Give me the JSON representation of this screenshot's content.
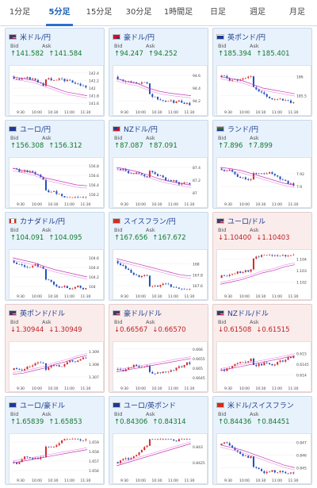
{
  "tabs": [
    {
      "label": "1分足",
      "active": false
    },
    {
      "label": "5分足",
      "active": true
    },
    {
      "label": "15分足",
      "active": false
    },
    {
      "label": "30分足",
      "active": false
    },
    {
      "label": "1時間足",
      "active": false
    },
    {
      "label": "日足",
      "active": false
    },
    {
      "label": "週足",
      "active": false
    },
    {
      "label": "月足",
      "active": false
    }
  ],
  "labels": {
    "bid": "Bid",
    "ask": "Ask"
  },
  "cards": [
    {
      "pair": "米ドル/円",
      "direction": "up",
      "bid": "↑141.582",
      "ask": "↑141.584",
      "flag": "us",
      "chart_data": {
        "type": "candlestick",
        "x_ticks": [
          "9:30",
          "10:00",
          "10:30",
          "11:00",
          "11:30"
        ],
        "y_ticks": [
          "142.4",
          "142.2",
          "142",
          "141.8",
          "141.6"
        ],
        "ylim": [
          141.5,
          142.5
        ],
        "trend": "down",
        "ma": [
          142.3,
          142.25,
          142.2,
          142.1,
          142.0,
          141.9,
          141.85,
          141.8
        ]
      }
    },
    {
      "pair": "豪ドル/円",
      "direction": "up",
      "bid": "↑94.247",
      "ask": "↑94.252",
      "flag": "au",
      "chart_data": {
        "type": "candlestick",
        "x_ticks": [
          "9:30",
          "10:00",
          "10:30",
          "11:00",
          "11:30"
        ],
        "y_ticks": [
          "94.6",
          "94.4",
          "94.2"
        ],
        "ylim": [
          94.1,
          94.7
        ],
        "trend": "down",
        "ma": [
          94.55,
          94.5,
          94.47,
          94.4,
          94.35,
          94.32,
          94.3,
          94.28
        ]
      }
    },
    {
      "pair": "英ポンド/円",
      "direction": "up",
      "bid": "↑185.394",
      "ask": "↑185.401",
      "flag": "uk",
      "chart_data": {
        "type": "candlestick",
        "x_ticks": [
          "9:30",
          "10:00",
          "10:30",
          "11:00",
          "11:30"
        ],
        "y_ticks": [
          "186",
          "185.5"
        ],
        "ylim": [
          185.2,
          186.2
        ],
        "trend": "down",
        "ma": [
          186.0,
          185.95,
          185.9,
          185.8,
          185.7,
          185.65,
          185.6,
          185.55
        ]
      }
    },
    {
      "pair": "ユーロ/円",
      "direction": "up",
      "bid": "↑156.308",
      "ask": "↑156.312",
      "flag": "eu",
      "chart_data": {
        "type": "candlestick",
        "x_ticks": [
          "9:30",
          "10:00",
          "10:30",
          "11:00",
          "11:30"
        ],
        "y_ticks": [
          "156.8",
          "156.6",
          "156.4",
          "156.2"
        ],
        "ylim": [
          156.1,
          156.9
        ],
        "trend": "down",
        "ma": [
          156.75,
          156.7,
          156.65,
          156.55,
          156.5,
          156.45,
          156.4,
          156.38
        ]
      }
    },
    {
      "pair": "NZドル/円",
      "direction": "up",
      "bid": "↑87.087",
      "ask": "↑87.091",
      "flag": "nz",
      "chart_data": {
        "type": "candlestick",
        "x_ticks": [
          "9:30",
          "10:00",
          "10:30",
          "11:00",
          "11:30"
        ],
        "y_ticks": [
          "87.4",
          "87.2",
          "87"
        ],
        "ylim": [
          86.9,
          87.5
        ],
        "trend": "down",
        "ma": [
          87.4,
          87.37,
          87.33,
          87.28,
          87.22,
          87.18,
          87.15,
          87.12
        ]
      }
    },
    {
      "pair": "ランド/円",
      "direction": "up",
      "bid": "↑7.896",
      "ask": "↑7.899",
      "flag": "za",
      "chart_data": {
        "type": "candlestick",
        "x_ticks": [
          "9:30",
          "10:00",
          "10:30",
          "11:00",
          "11:30"
        ],
        "y_ticks": [
          "7.92",
          "7.9"
        ],
        "ylim": [
          7.88,
          7.94
        ],
        "trend": "down",
        "ma": [
          7.93,
          7.928,
          7.925,
          7.92,
          7.915,
          7.91,
          7.905,
          7.902
        ]
      }
    },
    {
      "pair": "カナダドル/円",
      "direction": "up",
      "bid": "↑104.091",
      "ask": "↑104.095",
      "flag": "ca",
      "chart_data": {
        "type": "candlestick",
        "x_ticks": [
          "9:30",
          "10:00",
          "10:30",
          "11:00",
          "11:30"
        ],
        "y_ticks": [
          "104.6",
          "104.4",
          "104.2",
          "104"
        ],
        "ylim": [
          103.9,
          104.7
        ],
        "trend": "down",
        "ma": [
          104.6,
          104.55,
          104.5,
          104.42,
          104.35,
          104.3,
          104.25,
          104.2
        ]
      }
    },
    {
      "pair": "スイスフラン/円",
      "direction": "up",
      "bid": "↑167.656",
      "ask": "↑167.672",
      "flag": "ch",
      "chart_data": {
        "type": "candlestick",
        "x_ticks": [
          "9:30",
          "10:00",
          "10:30",
          "11:00",
          "11:30"
        ],
        "y_ticks": [
          "168",
          "167.8",
          "167.6"
        ],
        "ylim": [
          167.5,
          168.2
        ],
        "trend": "down",
        "ma": [
          168.1,
          168.05,
          168.0,
          167.95,
          167.9,
          167.85,
          167.8,
          167.78
        ]
      }
    },
    {
      "pair": "ユーロ/ドル",
      "direction": "down",
      "bid": "↓1.10400",
      "ask": "↓1.10403",
      "flag": "us",
      "chart_data": {
        "type": "candlestick",
        "x_ticks": [
          "9:30",
          "10:00",
          "10:30",
          "11:00",
          "11:30"
        ],
        "y_ticks": [
          "1.104",
          "1.103",
          "1.102"
        ],
        "ylim": [
          1.1012,
          1.1045
        ],
        "trend": "up",
        "ma": [
          1.1018,
          1.102,
          1.1022,
          1.1025,
          1.1028,
          1.103,
          1.1033,
          1.1035
        ]
      }
    },
    {
      "pair": "英ポンド/ドル",
      "direction": "down",
      "bid": "↓1.30944",
      "ask": "↓1.30949",
      "flag": "us",
      "chart_data": {
        "type": "candlestick",
        "x_ticks": [
          "9:30",
          "10:00",
          "10:30",
          "11:00",
          "11:30"
        ],
        "y_ticks": [
          "1.309",
          "1.308",
          "1.307"
        ],
        "ylim": [
          1.3065,
          1.3095
        ],
        "trend": "up",
        "ma": [
          1.3072,
          1.3073,
          1.3075,
          1.3077,
          1.308,
          1.3082,
          1.3085,
          1.3087
        ]
      }
    },
    {
      "pair": "豪ドル/ドル",
      "direction": "down",
      "bid": "↓0.66567",
      "ask": "↓0.66570",
      "flag": "us",
      "chart_data": {
        "type": "candlestick",
        "x_ticks": [
          "9:30",
          "10:00",
          "10:30",
          "11:00",
          "11:30"
        ],
        "y_ticks": [
          "0.666",
          "0.6655",
          "0.665",
          "0.6645"
        ],
        "ylim": [
          0.6642,
          0.6662
        ],
        "trend": "up",
        "ma": [
          0.6648,
          0.6649,
          0.665,
          0.6651,
          0.6652,
          0.6653,
          0.6654,
          0.6655
        ]
      }
    },
    {
      "pair": "NZドル/ドル",
      "direction": "down",
      "bid": "↓0.61508",
      "ask": "↓0.61515",
      "flag": "us",
      "chart_data": {
        "type": "candlestick",
        "x_ticks": [
          "9:30",
          "10:00",
          "10:30",
          "11:00",
          "11:30"
        ],
        "y_ticks": [
          "0.615",
          "0.6145",
          "0.614"
        ],
        "ylim": [
          0.6136,
          0.6154
        ],
        "trend": "up",
        "ma": [
          0.6142,
          0.6143,
          0.6144,
          0.6145,
          0.6146,
          0.6147,
          0.6148,
          0.6149
        ]
      }
    },
    {
      "pair": "ユーロ/豪ドル",
      "direction": "up",
      "bid": "↑1.65839",
      "ask": "↑1.65853",
      "flag": "eu",
      "chart_data": {
        "type": "candlestick",
        "x_ticks": [
          "9:30",
          "10:00",
          "10:30",
          "11:00",
          "11:30"
        ],
        "y_ticks": [
          "1.659",
          "1.658",
          "1.657",
          "1.656"
        ],
        "ylim": [
          1.6555,
          1.6595
        ],
        "trend": "up",
        "ma": [
          1.6568,
          1.657,
          1.6572,
          1.6574,
          1.6576,
          1.6578,
          1.658,
          1.6582
        ]
      }
    },
    {
      "pair": "ユーロ/英ポンド",
      "direction": "up",
      "bid": "↑0.84306",
      "ask": "↑0.84314",
      "flag": "eu",
      "chart_data": {
        "type": "candlestick",
        "x_ticks": [
          "9:30",
          "10:00",
          "10:30",
          "11:00",
          "11:30"
        ],
        "y_ticks": [
          "0.843",
          "0.8425"
        ],
        "ylim": [
          0.8421,
          0.8433
        ],
        "trend": "up",
        "ma": [
          0.8424,
          0.8425,
          0.8426,
          0.8427,
          0.8428,
          0.8429,
          0.843,
          0.8431
        ]
      }
    },
    {
      "pair": "米ドル/スイスフラン",
      "direction": "up",
      "bid": "↑0.84436",
      "ask": "↑0.84451",
      "flag": "ch",
      "chart_data": {
        "type": "candlestick",
        "x_ticks": [
          "9:30",
          "10:00",
          "10:30",
          "11:00",
          "11:30"
        ],
        "y_ticks": [
          "0.847",
          "0.846",
          "0.845"
        ],
        "ylim": [
          0.8444,
          0.8474
        ],
        "trend": "down",
        "ma": [
          0.8468,
          0.8466,
          0.8464,
          0.8461,
          0.8458,
          0.8455,
          0.8452,
          0.845
        ]
      }
    }
  ],
  "colors": {
    "up_candle": "#d62828",
    "down_candle": "#1f4fbf",
    "ma1": "#c53ab8",
    "ma2": "#e07ad8"
  }
}
